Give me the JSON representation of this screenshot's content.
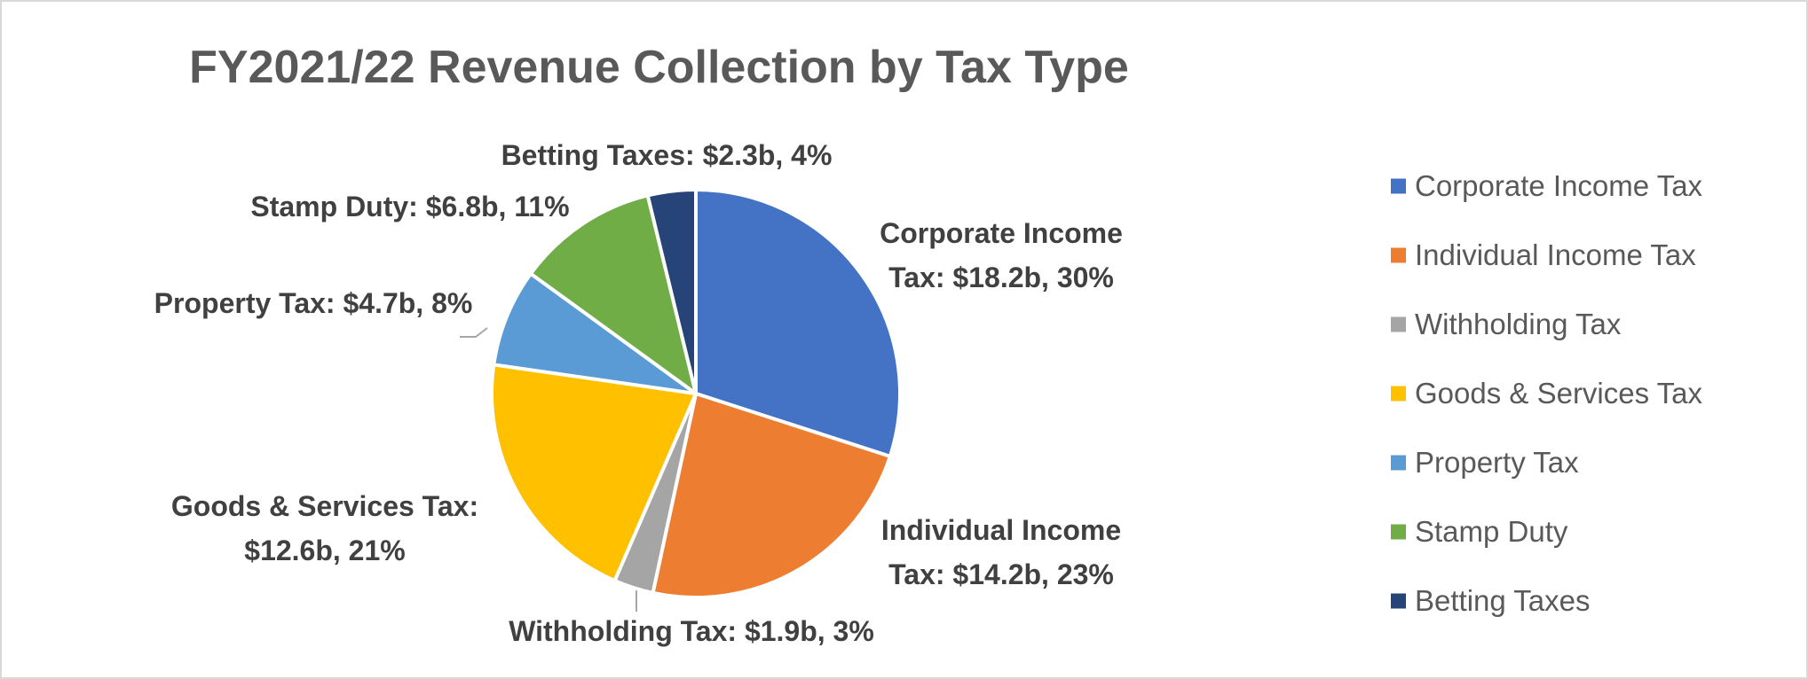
{
  "chart_data": {
    "type": "pie",
    "title": "FY2021/22 Revenue Collection by Tax Type",
    "categories": [
      "Corporate Income Tax",
      "Individual Income Tax",
      "Withholding Tax",
      "Goods & Services Tax",
      "Property Tax",
      "Stamp Duty",
      "Betting Taxes"
    ],
    "values": [
      18.2,
      14.2,
      1.9,
      12.6,
      4.7,
      6.8,
      2.3
    ],
    "value_labels": [
      "Corporate Income Tax: $18.2b, 30%",
      "Individual Income Tax: $14.2b, 23%",
      "Withholding Tax: $1.9b, 3%",
      "Goods & Services Tax: $12.6b, 21%",
      "Property Tax: $4.7b, 8%",
      "Stamp Duty: $6.8b, 11%",
      "Betting Taxes: $2.3b, 4%"
    ],
    "colors": [
      "#4472c4",
      "#ed7d31",
      "#a5a5a5",
      "#ffc000",
      "#5b9bd5",
      "#70ad47",
      "#264478"
    ],
    "legend": "right"
  }
}
